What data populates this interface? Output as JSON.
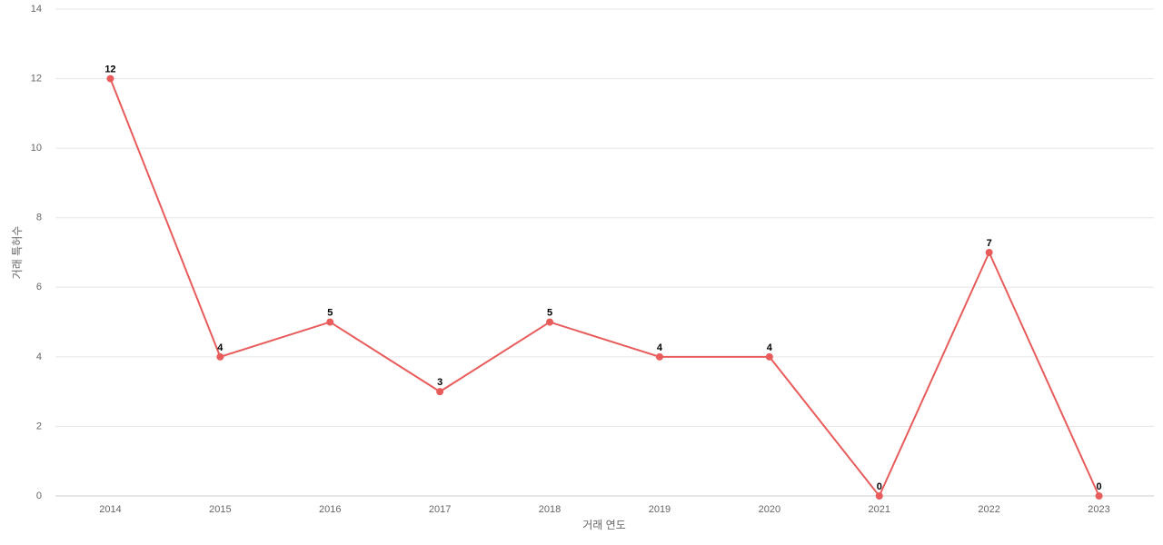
{
  "chart_data": {
    "type": "line",
    "x_label": "거래 연도",
    "y_label": "거래 특허수",
    "categories": [
      "2014",
      "2015",
      "2016",
      "2017",
      "2018",
      "2019",
      "2020",
      "2021",
      "2022",
      "2023"
    ],
    "series": [
      {
        "color": "#e85c5c",
        "values": [
          12,
          4,
          5,
          3,
          5,
          4,
          4,
          0,
          7,
          0
        ]
      }
    ],
    "ylim": [
      0,
      14
    ],
    "yticks": [
      0,
      2,
      4,
      6,
      8,
      10,
      12,
      14
    ],
    "grid": true
  }
}
